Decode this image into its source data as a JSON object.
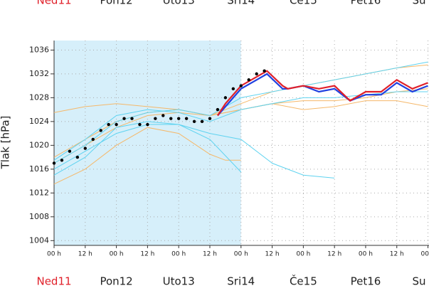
{
  "chart_data": {
    "type": "line",
    "y_label": "Tlak [hPa]",
    "xlim": [
      0,
      144.4
    ],
    "ylim": [
      1003.2,
      1037.6
    ],
    "shade_xlim": [
      0,
      72
    ],
    "shade_color": "#d6effa",
    "grid": true,
    "yticks": [
      1004,
      1008,
      1012,
      1016,
      1020,
      1024,
      1028,
      1032,
      1036
    ],
    "xticks": [
      {
        "value": 0,
        "label": "00 h"
      },
      {
        "value": 12,
        "label": "12 h"
      },
      {
        "value": 24,
        "label": "00 h"
      },
      {
        "value": 36,
        "label": "12 h"
      },
      {
        "value": 48,
        "label": "00 h"
      },
      {
        "value": 60,
        "label": "12 h"
      },
      {
        "value": 72,
        "label": "00 h"
      },
      {
        "value": 84,
        "label": "12 h"
      },
      {
        "value": 96,
        "label": "00 h"
      },
      {
        "value": 108,
        "label": "12 h"
      },
      {
        "value": 120,
        "label": "00 h"
      },
      {
        "value": 132,
        "label": "12 h"
      },
      {
        "value": 144,
        "label": "00 h"
      }
    ],
    "days": [
      "Ned11",
      "Pon12",
      "Uto13",
      "Sri14",
      "Če15",
      "Pet16",
      "Su"
    ],
    "day_x": [
      0,
      24,
      48,
      72,
      96,
      120,
      144
    ],
    "day_colors": [
      "#e0202a",
      "#222222",
      "#222222",
      "#222222",
      "#222222",
      "#222222",
      "#222222"
    ],
    "series": [
      {
        "style": "line",
        "color": "#f5b86a",
        "x": [
          0,
          12,
          24,
          36,
          48,
          60,
          66,
          72
        ],
        "values": [
          1013.5,
          1016,
          1020,
          1023,
          1022,
          1018.5,
          1017.5,
          1017.5
        ]
      },
      {
        "style": "line",
        "color": "#f5b86a",
        "x": [
          0,
          12,
          24,
          36,
          48,
          60,
          72,
          84,
          96,
          108,
          120,
          132,
          144
        ],
        "values": [
          1025.5,
          1026.5,
          1027,
          1026.5,
          1026,
          1025,
          1026,
          1027,
          1027.5,
          1027.5,
          1028,
          1029,
          1029.5
        ]
      },
      {
        "style": "line",
        "color": "#f5b86a",
        "x": [
          0,
          12,
          24,
          36,
          48,
          60,
          72,
          84,
          96,
          108,
          120,
          132,
          144
        ],
        "values": [
          1017,
          1020,
          1023,
          1025,
          1025.5,
          1025,
          1026,
          1027,
          1026,
          1026.5,
          1027.5,
          1027.5,
          1026.5
        ]
      },
      {
        "style": "line",
        "color": "#f5b86a",
        "x": [
          0,
          12,
          24,
          36,
          48,
          60,
          72,
          84,
          96,
          108,
          120,
          132,
          144
        ],
        "values": [
          1018,
          1021,
          1024,
          1025.5,
          1026,
          1025,
          1027,
          1029,
          1030,
          1031,
          1032,
          1033,
          1033.5
        ]
      },
      {
        "style": "line",
        "color": "#5fd3f0",
        "x": [
          0,
          12,
          24,
          36,
          48,
          60,
          72,
          84,
          96,
          108
        ],
        "values": [
          1016,
          1019,
          1022,
          1023.5,
          1023.5,
          1022,
          1021,
          1017,
          1015,
          1014.5
        ]
      },
      {
        "style": "line",
        "color": "#5fd3f0",
        "x": [
          0,
          12,
          24,
          36,
          48,
          60,
          72
        ],
        "values": [
          1015,
          1018,
          1023,
          1024,
          1023.5,
          1021,
          1015.5
        ]
      },
      {
        "style": "line",
        "color": "#5fd3f0",
        "x": [
          0,
          12,
          24,
          36,
          48,
          60,
          72,
          84,
          96,
          108,
          120,
          132,
          144
        ],
        "values": [
          1017,
          1020,
          1024,
          1025.5,
          1026,
          1025,
          1028,
          1029,
          1030,
          1031,
          1032,
          1033,
          1034
        ]
      },
      {
        "style": "line",
        "color": "#5fd3f0",
        "x": [
          0,
          12,
          24,
          36,
          48,
          60,
          72,
          84,
          96,
          108,
          120,
          132,
          144
        ],
        "values": [
          1017.5,
          1021,
          1025,
          1026,
          1025.5,
          1024,
          1026,
          1027,
          1028,
          1028,
          1028.5,
          1029,
          1029
        ]
      },
      {
        "style": "line",
        "color": "#2040e0",
        "x": [
          63,
          66,
          72,
          78,
          82,
          88,
          90,
          96,
          102,
          108,
          114,
          120,
          126,
          132,
          138,
          144
        ],
        "values": [
          1025,
          1026.5,
          1029.5,
          1031,
          1032,
          1029.5,
          1029.5,
          1030,
          1029,
          1029.5,
          1027.5,
          1028.5,
          1028.5,
          1030.5,
          1029,
          1030
        ]
      },
      {
        "style": "line",
        "color": "#e0202a",
        "x": [
          63,
          66,
          72,
          78,
          82,
          88,
          90,
          96,
          102,
          108,
          114,
          120,
          126,
          132,
          138,
          144
        ],
        "values": [
          1025,
          1027,
          1030,
          1031.5,
          1032.5,
          1030,
          1029.5,
          1030,
          1029.5,
          1030,
          1027.5,
          1029,
          1029,
          1031,
          1029.5,
          1030.5
        ]
      },
      {
        "style": "dots",
        "color": "#000000",
        "x": [
          0,
          3,
          6,
          9,
          12,
          15,
          18,
          21,
          24,
          27,
          30,
          33,
          36,
          39,
          42,
          45,
          48,
          51,
          54,
          57,
          60,
          63,
          66,
          69,
          72,
          75,
          78,
          81
        ],
        "values": [
          1017,
          1017.5,
          1019,
          1018,
          1019.5,
          1021,
          1022.5,
          1023.5,
          1023.5,
          1024.5,
          1024.5,
          1023.5,
          1023.5,
          1024.5,
          1025,
          1024.5,
          1024.5,
          1024.5,
          1024,
          1024,
          1024.5,
          1026,
          1028,
          1029.5,
          1030,
          1031,
          1032,
          1032.5
        ]
      }
    ]
  }
}
